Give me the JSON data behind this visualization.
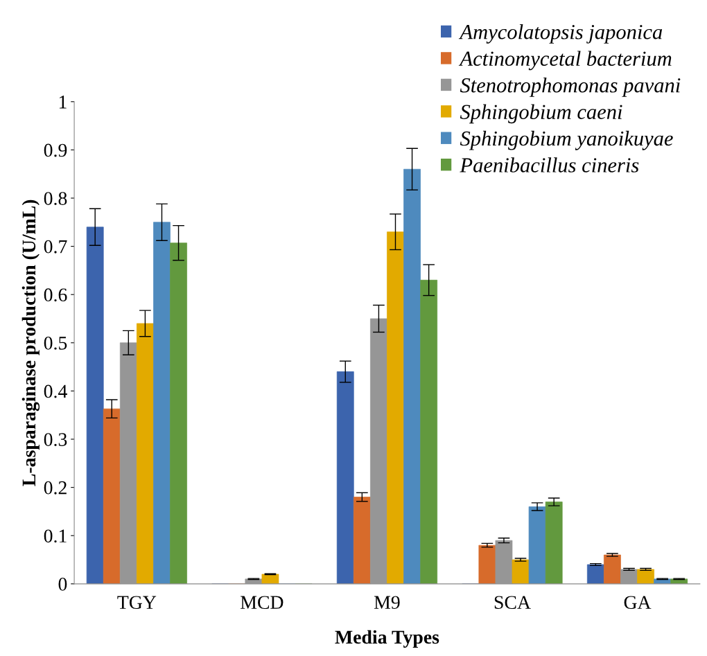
{
  "chart_data": {
    "type": "bar",
    "xlabel": "Media Types",
    "ylabel": "L-asparaginase production (U/mL)",
    "categories": [
      "TGY",
      "MCD",
      "M9",
      "SCA",
      "GA"
    ],
    "ylim": [
      0,
      1
    ],
    "yticks": [
      0,
      0.1,
      0.2,
      0.3,
      0.4,
      0.5,
      0.6,
      0.7,
      0.8,
      0.9,
      1
    ],
    "grid": false,
    "legend": "top right",
    "series": [
      {
        "name": "Amycolatopsis japonica",
        "color": "#3c64ad",
        "values": [
          0.74,
          0,
          0.44,
          0,
          0.04
        ],
        "errors": [
          0.038,
          null,
          0.022,
          null,
          0.002
        ]
      },
      {
        "name": "Actinomycetal bacterium",
        "color": "#d76b2b",
        "values": [
          0.363,
          0,
          0.18,
          0.08,
          0.06
        ],
        "errors": [
          0.019,
          null,
          0.009,
          0.004,
          0.003
        ]
      },
      {
        "name": "Stenotrophomonas pavani",
        "color": "#969696",
        "values": [
          0.5,
          0.01,
          0.55,
          0.09,
          0.03
        ],
        "errors": [
          0.025,
          0.001,
          0.028,
          0.005,
          0.002
        ]
      },
      {
        "name": "Sphingobium caeni",
        "color": "#e2aa00",
        "values": [
          0.54,
          0.02,
          0.73,
          0.05,
          0.03
        ],
        "errors": [
          0.027,
          0.001,
          0.037,
          0.003,
          0.002
        ]
      },
      {
        "name": "Sphingobium yanoikuyae",
        "color": "#4e8abe",
        "values": [
          0.75,
          0,
          0.86,
          0.16,
          0.01
        ],
        "errors": [
          0.038,
          null,
          0.043,
          0.008,
          0.001
        ]
      },
      {
        "name": "Paenibacillus cineris",
        "color": "#62993e",
        "values": [
          0.707,
          0,
          0.63,
          0.17,
          0.01
        ],
        "errors": [
          0.036,
          null,
          0.032,
          0.008,
          0.001
        ]
      }
    ]
  }
}
